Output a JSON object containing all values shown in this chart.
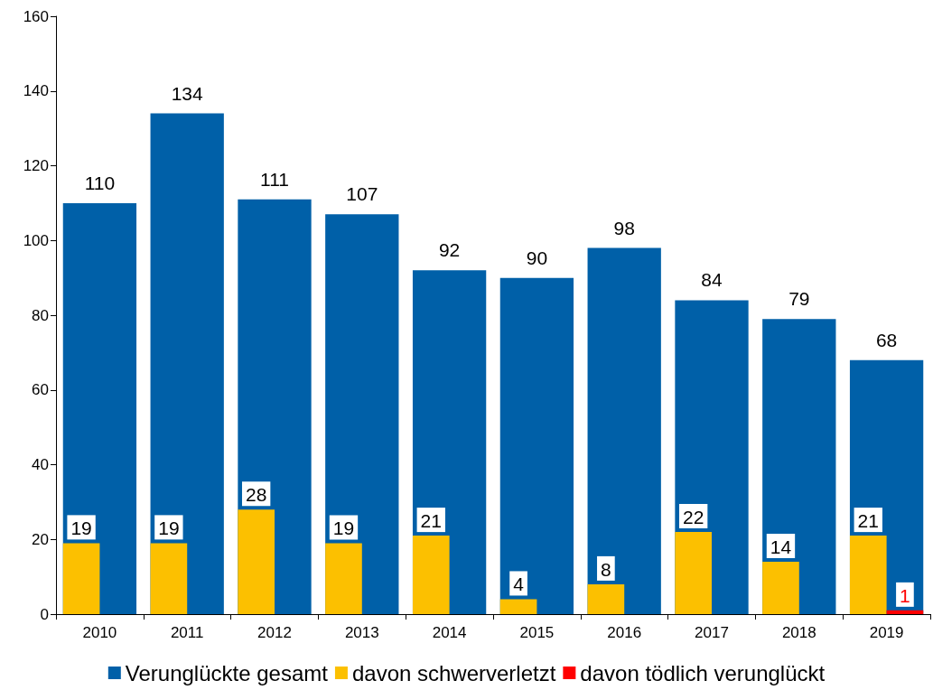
{
  "chart_data": {
    "type": "bar",
    "categories": [
      "2010",
      "2011",
      "2012",
      "2013",
      "2014",
      "2015",
      "2016",
      "2017",
      "2018",
      "2019"
    ],
    "series": [
      {
        "name": "Verunglückte gesamt",
        "color": "#0060a8",
        "values": [
          110,
          134,
          111,
          107,
          92,
          90,
          98,
          84,
          79,
          68
        ]
      },
      {
        "name": "davon schwerverletzt",
        "color": "#fcc000",
        "values": [
          19,
          19,
          28,
          19,
          21,
          4,
          8,
          22,
          14,
          21
        ]
      },
      {
        "name": "davon tödlich verunglückt",
        "color": "#ff0000",
        "values": [
          null,
          null,
          null,
          null,
          null,
          null,
          null,
          null,
          null,
          1
        ]
      }
    ],
    "ylim": [
      0,
      160
    ],
    "yticks": [
      0,
      20,
      40,
      60,
      80,
      100,
      120,
      140,
      160
    ],
    "grid": false,
    "legend": "bottom",
    "data_labels": true
  }
}
